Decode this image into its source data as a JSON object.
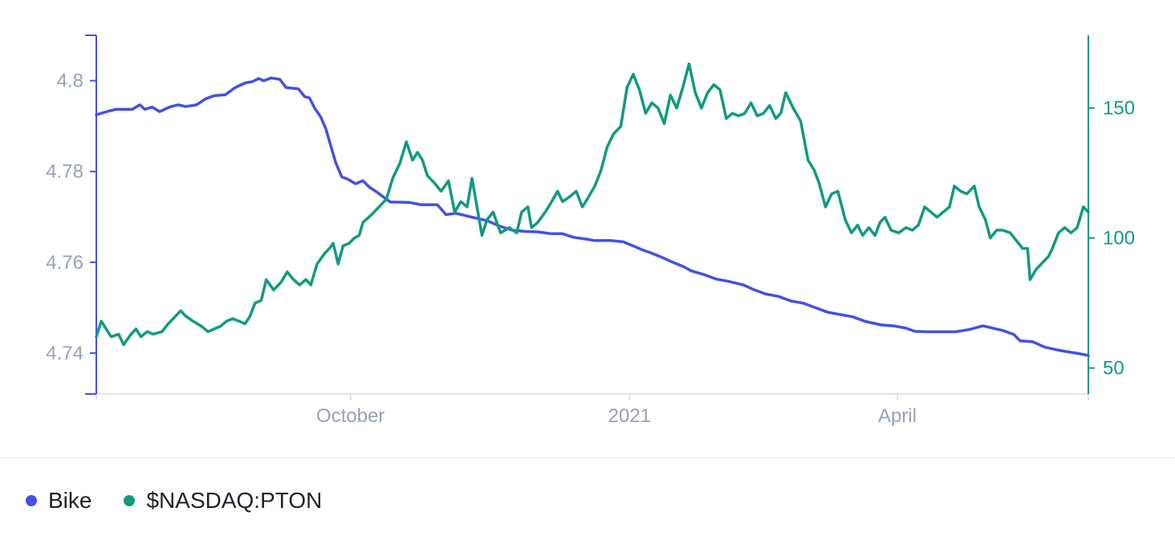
{
  "chart_data": {
    "type": "line",
    "title": "",
    "x_ticks": [
      "October",
      "2021",
      "April"
    ],
    "y_left": {
      "ticks": [
        "4.74",
        "4.76",
        "4.78",
        "4.8"
      ],
      "range": [
        4.731,
        4.81
      ]
    },
    "y_right": {
      "ticks": [
        "50",
        "100",
        "150"
      ],
      "range": [
        40,
        178
      ]
    },
    "x_range": [
      0,
      80
    ],
    "x_tick_positions": [
      20.5,
      43,
      64.6
    ],
    "grid": false,
    "legend_position": "bottom-left",
    "series": [
      {
        "name": "Bike",
        "axis": "left",
        "color": "#4450e4",
        "points": [
          [
            0,
            4.7925
          ],
          [
            1,
            4.7933
          ],
          [
            1.6,
            4.7937
          ],
          [
            2.9,
            4.7937
          ],
          [
            3.5,
            4.7947
          ],
          [
            3.9,
            4.7937
          ],
          [
            4.5,
            4.7942
          ],
          [
            5.1,
            4.7932
          ],
          [
            5.9,
            4.7942
          ],
          [
            6.6,
            4.7947
          ],
          [
            7.2,
            4.7943
          ],
          [
            8.1,
            4.7947
          ],
          [
            8.8,
            4.796
          ],
          [
            9.5,
            4.7967
          ],
          [
            10.4,
            4.7969
          ],
          [
            11.2,
            4.7985
          ],
          [
            12,
            4.7995
          ],
          [
            12.6,
            4.7998
          ],
          [
            13.1,
            4.8005
          ],
          [
            13.5,
            4.8
          ],
          [
            14.1,
            4.8006
          ],
          [
            14.8,
            4.8003
          ],
          [
            15.3,
            4.7985
          ],
          [
            16.3,
            4.7982
          ],
          [
            16.8,
            4.7965
          ],
          [
            17.2,
            4.7962
          ],
          [
            17.6,
            4.794
          ],
          [
            18.1,
            4.792
          ],
          [
            18.5,
            4.7895
          ],
          [
            19.3,
            4.782
          ],
          [
            19.8,
            4.7788
          ],
          [
            20.3,
            4.7783
          ],
          [
            20.9,
            4.7773
          ],
          [
            21.5,
            4.778
          ],
          [
            22,
            4.7766
          ],
          [
            22.6,
            4.7755
          ],
          [
            23.7,
            4.7733
          ],
          [
            25.2,
            4.7732
          ],
          [
            26.2,
            4.7727
          ],
          [
            27.5,
            4.7727
          ],
          [
            28.2,
            4.7705
          ],
          [
            29,
            4.7708
          ],
          [
            30.2,
            4.77
          ],
          [
            31.5,
            4.7692
          ],
          [
            32.5,
            4.768
          ],
          [
            33.5,
            4.7671
          ],
          [
            34.5,
            4.7668
          ],
          [
            35.6,
            4.7667
          ],
          [
            36.7,
            4.7663
          ],
          [
            37.6,
            4.7663
          ],
          [
            38.5,
            4.7655
          ],
          [
            39.3,
            4.7652
          ],
          [
            40.2,
            4.7648
          ],
          [
            41.5,
            4.7648
          ],
          [
            42.5,
            4.7645
          ],
          [
            43.3,
            4.7636
          ],
          [
            44,
            4.7628
          ],
          [
            44.8,
            4.762
          ],
          [
            45.7,
            4.761
          ],
          [
            46.5,
            4.76
          ],
          [
            47.4,
            4.759
          ],
          [
            48,
            4.7581
          ],
          [
            49,
            4.7573
          ],
          [
            50,
            4.7563
          ],
          [
            51,
            4.7558
          ],
          [
            52.2,
            4.755
          ],
          [
            53,
            4.754
          ],
          [
            54,
            4.753
          ],
          [
            55,
            4.7525
          ],
          [
            56,
            4.7515
          ],
          [
            57,
            4.751
          ],
          [
            58,
            4.75
          ],
          [
            59,
            4.749
          ],
          [
            60,
            4.7485
          ],
          [
            61,
            4.748
          ],
          [
            62,
            4.747
          ],
          [
            63.3,
            4.7462
          ],
          [
            64.3,
            4.746
          ],
          [
            65.3,
            4.7455
          ],
          [
            66,
            4.7448
          ],
          [
            67,
            4.7447
          ],
          [
            68.5,
            4.7447
          ],
          [
            69.3,
            4.7447
          ],
          [
            70.4,
            4.7452
          ],
          [
            71.5,
            4.746
          ],
          [
            72.3,
            4.7455
          ],
          [
            73.1,
            4.745
          ],
          [
            74,
            4.7441
          ],
          [
            74.5,
            4.7427
          ],
          [
            75.5,
            4.7425
          ],
          [
            76.5,
            4.7413
          ],
          [
            77.5,
            4.7407
          ],
          [
            78.5,
            4.7402
          ],
          [
            79.2,
            4.7399
          ],
          [
            80,
            4.7395
          ]
        ]
      },
      {
        "name": "$NASDAQ:PTON",
        "axis": "right",
        "color": "#119a80",
        "points": [
          [
            0,
            62
          ],
          [
            0.4,
            68
          ],
          [
            1.2,
            62
          ],
          [
            1.8,
            63
          ],
          [
            2.2,
            59
          ],
          [
            2.8,
            63
          ],
          [
            3.2,
            65
          ],
          [
            3.6,
            62
          ],
          [
            4.1,
            64
          ],
          [
            4.6,
            63
          ],
          [
            5.3,
            64
          ],
          [
            5.8,
            67
          ],
          [
            6.4,
            70
          ],
          [
            6.8,
            72
          ],
          [
            7.2,
            70
          ],
          [
            7.8,
            68
          ],
          [
            8.5,
            66
          ],
          [
            9,
            64
          ],
          [
            9.5,
            65
          ],
          [
            10,
            66
          ],
          [
            10.5,
            68
          ],
          [
            11,
            69
          ],
          [
            11.5,
            68
          ],
          [
            12,
            67
          ],
          [
            12.4,
            70
          ],
          [
            12.8,
            75
          ],
          [
            13.3,
            76
          ],
          [
            13.7,
            84
          ],
          [
            14.3,
            80
          ],
          [
            14.9,
            83
          ],
          [
            15.4,
            87
          ],
          [
            15.9,
            84
          ],
          [
            16.4,
            82
          ],
          [
            16.9,
            84
          ],
          [
            17.3,
            82
          ],
          [
            17.8,
            90
          ],
          [
            18.4,
            94
          ],
          [
            18.8,
            96
          ],
          [
            19.1,
            98
          ],
          [
            19.5,
            90
          ],
          [
            19.9,
            97
          ],
          [
            20.4,
            98
          ],
          [
            20.8,
            100
          ],
          [
            21.2,
            101
          ],
          [
            21.5,
            106
          ],
          [
            22.2,
            109
          ],
          [
            22.8,
            112
          ],
          [
            23.4,
            115
          ],
          [
            23.9,
            123
          ],
          [
            24.5,
            129
          ],
          [
            25,
            137
          ],
          [
            25.5,
            130
          ],
          [
            25.9,
            133
          ],
          [
            26.3,
            130
          ],
          [
            26.7,
            124
          ],
          [
            27.3,
            121
          ],
          [
            27.8,
            118
          ],
          [
            28.4,
            122
          ],
          [
            28.9,
            110
          ],
          [
            29.4,
            114
          ],
          [
            29.9,
            112
          ],
          [
            30.3,
            123
          ],
          [
            30.7,
            112
          ],
          [
            31.1,
            101
          ],
          [
            31.5,
            107
          ],
          [
            32,
            110
          ],
          [
            32.6,
            102
          ],
          [
            33.3,
            104
          ],
          [
            33.9,
            102
          ],
          [
            34.3,
            110
          ],
          [
            34.8,
            112
          ],
          [
            35.1,
            104
          ],
          [
            35.6,
            106
          ],
          [
            36.2,
            110
          ],
          [
            36.6,
            113
          ],
          [
            37.2,
            118
          ],
          [
            37.6,
            114
          ],
          [
            38.2,
            116
          ],
          [
            38.7,
            118
          ],
          [
            39.2,
            112
          ],
          [
            39.6,
            115
          ],
          [
            40.2,
            120
          ],
          [
            40.7,
            126
          ],
          [
            41.2,
            135
          ],
          [
            41.7,
            140
          ],
          [
            42.3,
            143
          ],
          [
            42.8,
            158
          ],
          [
            43.3,
            163
          ],
          [
            43.8,
            157
          ],
          [
            44.3,
            148
          ],
          [
            44.8,
            152
          ],
          [
            45.3,
            150
          ],
          [
            45.8,
            144
          ],
          [
            46.3,
            155
          ],
          [
            46.8,
            150
          ],
          [
            47.3,
            158
          ],
          [
            47.8,
            167
          ],
          [
            48.3,
            156
          ],
          [
            48.8,
            150
          ],
          [
            49.3,
            156
          ],
          [
            49.8,
            159
          ],
          [
            50.3,
            157
          ],
          [
            50.8,
            146
          ],
          [
            51.3,
            148
          ],
          [
            51.8,
            147
          ],
          [
            52.3,
            148
          ],
          [
            52.8,
            152
          ],
          [
            53.3,
            147
          ],
          [
            53.8,
            148
          ],
          [
            54.3,
            151
          ],
          [
            54.8,
            146
          ],
          [
            55.2,
            148
          ],
          [
            55.6,
            156
          ],
          [
            56.2,
            150
          ],
          [
            56.8,
            145
          ],
          [
            57.4,
            130
          ],
          [
            57.9,
            126
          ],
          [
            58.3,
            121
          ],
          [
            58.8,
            112
          ],
          [
            59.3,
            117
          ],
          [
            59.8,
            118
          ],
          [
            60.4,
            107
          ],
          [
            60.9,
            102
          ],
          [
            61.4,
            105
          ],
          [
            61.8,
            101
          ],
          [
            62.3,
            104
          ],
          [
            62.8,
            101
          ],
          [
            63.2,
            106
          ],
          [
            63.6,
            108
          ],
          [
            64.1,
            103
          ],
          [
            64.7,
            102
          ],
          [
            65.3,
            104
          ],
          [
            65.8,
            103
          ],
          [
            66.3,
            105
          ],
          [
            66.8,
            112
          ],
          [
            67.3,
            110
          ],
          [
            67.8,
            108
          ],
          [
            68.3,
            110
          ],
          [
            68.8,
            112
          ],
          [
            69.2,
            120
          ],
          [
            69.7,
            118
          ],
          [
            70.2,
            117
          ],
          [
            70.8,
            120
          ],
          [
            71.2,
            112
          ],
          [
            71.7,
            107
          ],
          [
            72.1,
            100
          ],
          [
            72.6,
            103
          ],
          [
            73.1,
            103
          ],
          [
            73.7,
            102
          ],
          [
            74.2,
            99
          ],
          [
            74.7,
            96
          ],
          [
            75.1,
            96
          ],
          [
            75.3,
            84
          ],
          [
            75.8,
            88
          ],
          [
            76.4,
            91
          ],
          [
            76.8,
            93
          ],
          [
            77.1,
            96
          ],
          [
            77.6,
            102
          ],
          [
            78.1,
            104
          ],
          [
            78.6,
            102
          ],
          [
            79.1,
            104
          ],
          [
            79.6,
            112
          ],
          [
            80,
            110
          ]
        ]
      }
    ]
  },
  "legend": {
    "items": [
      {
        "label": "Bike",
        "color": "#4450e4"
      },
      {
        "label": "$NASDAQ:PTON",
        "color": "#119a80"
      }
    ]
  },
  "colors": {
    "left_axis": "#4450e4",
    "right_axis": "#119a80",
    "x_axis_line": "#dfe3ec",
    "tick_text": "#98a0b8"
  }
}
